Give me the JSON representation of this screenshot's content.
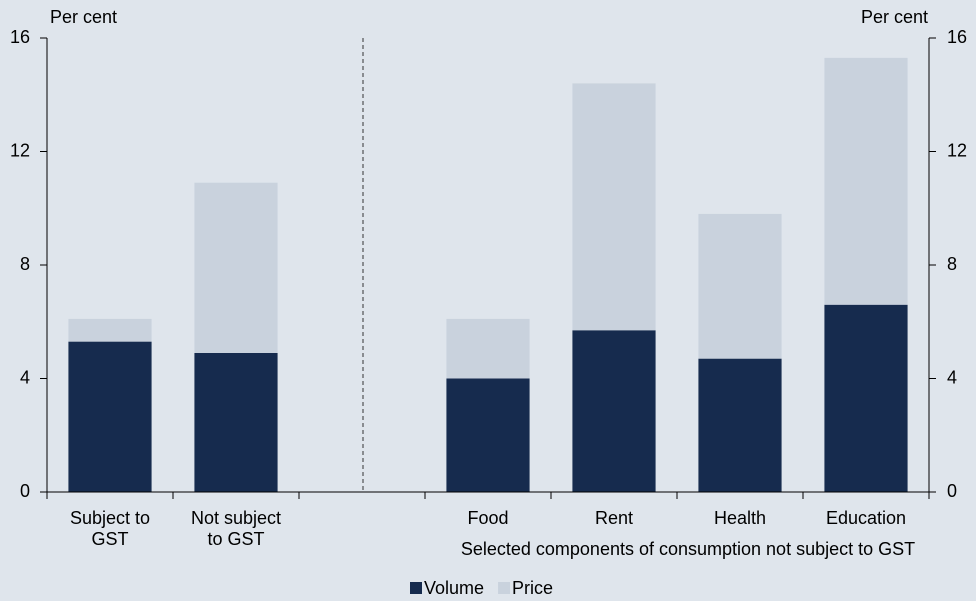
{
  "chart_data": {
    "type": "bar",
    "stacked": true,
    "categories": [
      "Subject to GST",
      "Not subject to GST",
      null,
      "Food",
      "Rent",
      "Health",
      "Education"
    ],
    "series": [
      {
        "name": "Volume",
        "color": "#162b4e",
        "values": [
          5.3,
          4.9,
          null,
          4.0,
          5.7,
          4.7,
          6.6
        ]
      },
      {
        "name": "Price",
        "color": "#c9d2dd",
        "values": [
          0.8,
          6.0,
          null,
          2.1,
          8.7,
          5.1,
          8.7
        ]
      }
    ],
    "ylabel": "Per cent",
    "y2label": "Per cent",
    "xlabel": "Selected components of consumption not subject  to GST",
    "ylim": [
      0,
      16
    ],
    "yticks": [
      0,
      4,
      8,
      12,
      16
    ],
    "y2lim": [
      0,
      16
    ],
    "y2ticks": [
      0,
      4,
      8,
      12,
      16
    ],
    "legend": "bottom"
  }
}
